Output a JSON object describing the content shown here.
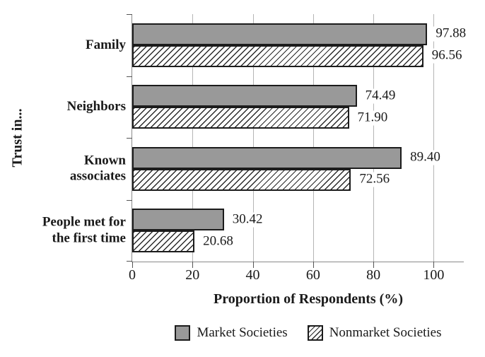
{
  "chart_data": {
    "type": "bar",
    "orientation": "horizontal",
    "title": "",
    "xlabel": "Proportion of Respondents (%)",
    "ylabel": "Trust in...",
    "xlim": [
      0,
      110
    ],
    "xticks": [
      0,
      20,
      40,
      60,
      80,
      100
    ],
    "grid": "vertical-gridlines-on",
    "legend_position": "bottom",
    "categories": [
      {
        "label": "Family",
        "lines": [
          "Family"
        ]
      },
      {
        "label": "Neighbors",
        "lines": [
          "Neighbors"
        ]
      },
      {
        "label": "Known associates",
        "lines": [
          "Known",
          "associates"
        ]
      },
      {
        "label": "People met for the first time",
        "lines": [
          "People met for",
          "the first time"
        ]
      }
    ],
    "series": [
      {
        "name": "Market Societies",
        "style": "solid-gray",
        "values": [
          97.88,
          74.49,
          89.4,
          30.42
        ]
      },
      {
        "name": "Nonmarket Societies",
        "style": "hatched",
        "values": [
          96.56,
          71.9,
          72.56,
          20.68
        ]
      }
    ],
    "value_label_format": "2-decimals"
  },
  "colors": {
    "bar_fill": "#999999",
    "bar_border": "#1c1c1c",
    "hatch_line": "#2a2a2a",
    "gridline": "#b5b5b5",
    "axis_line": "#8a8a8a",
    "tick": "#555555",
    "text": "#1a1a1a",
    "background": "#ffffff"
  }
}
